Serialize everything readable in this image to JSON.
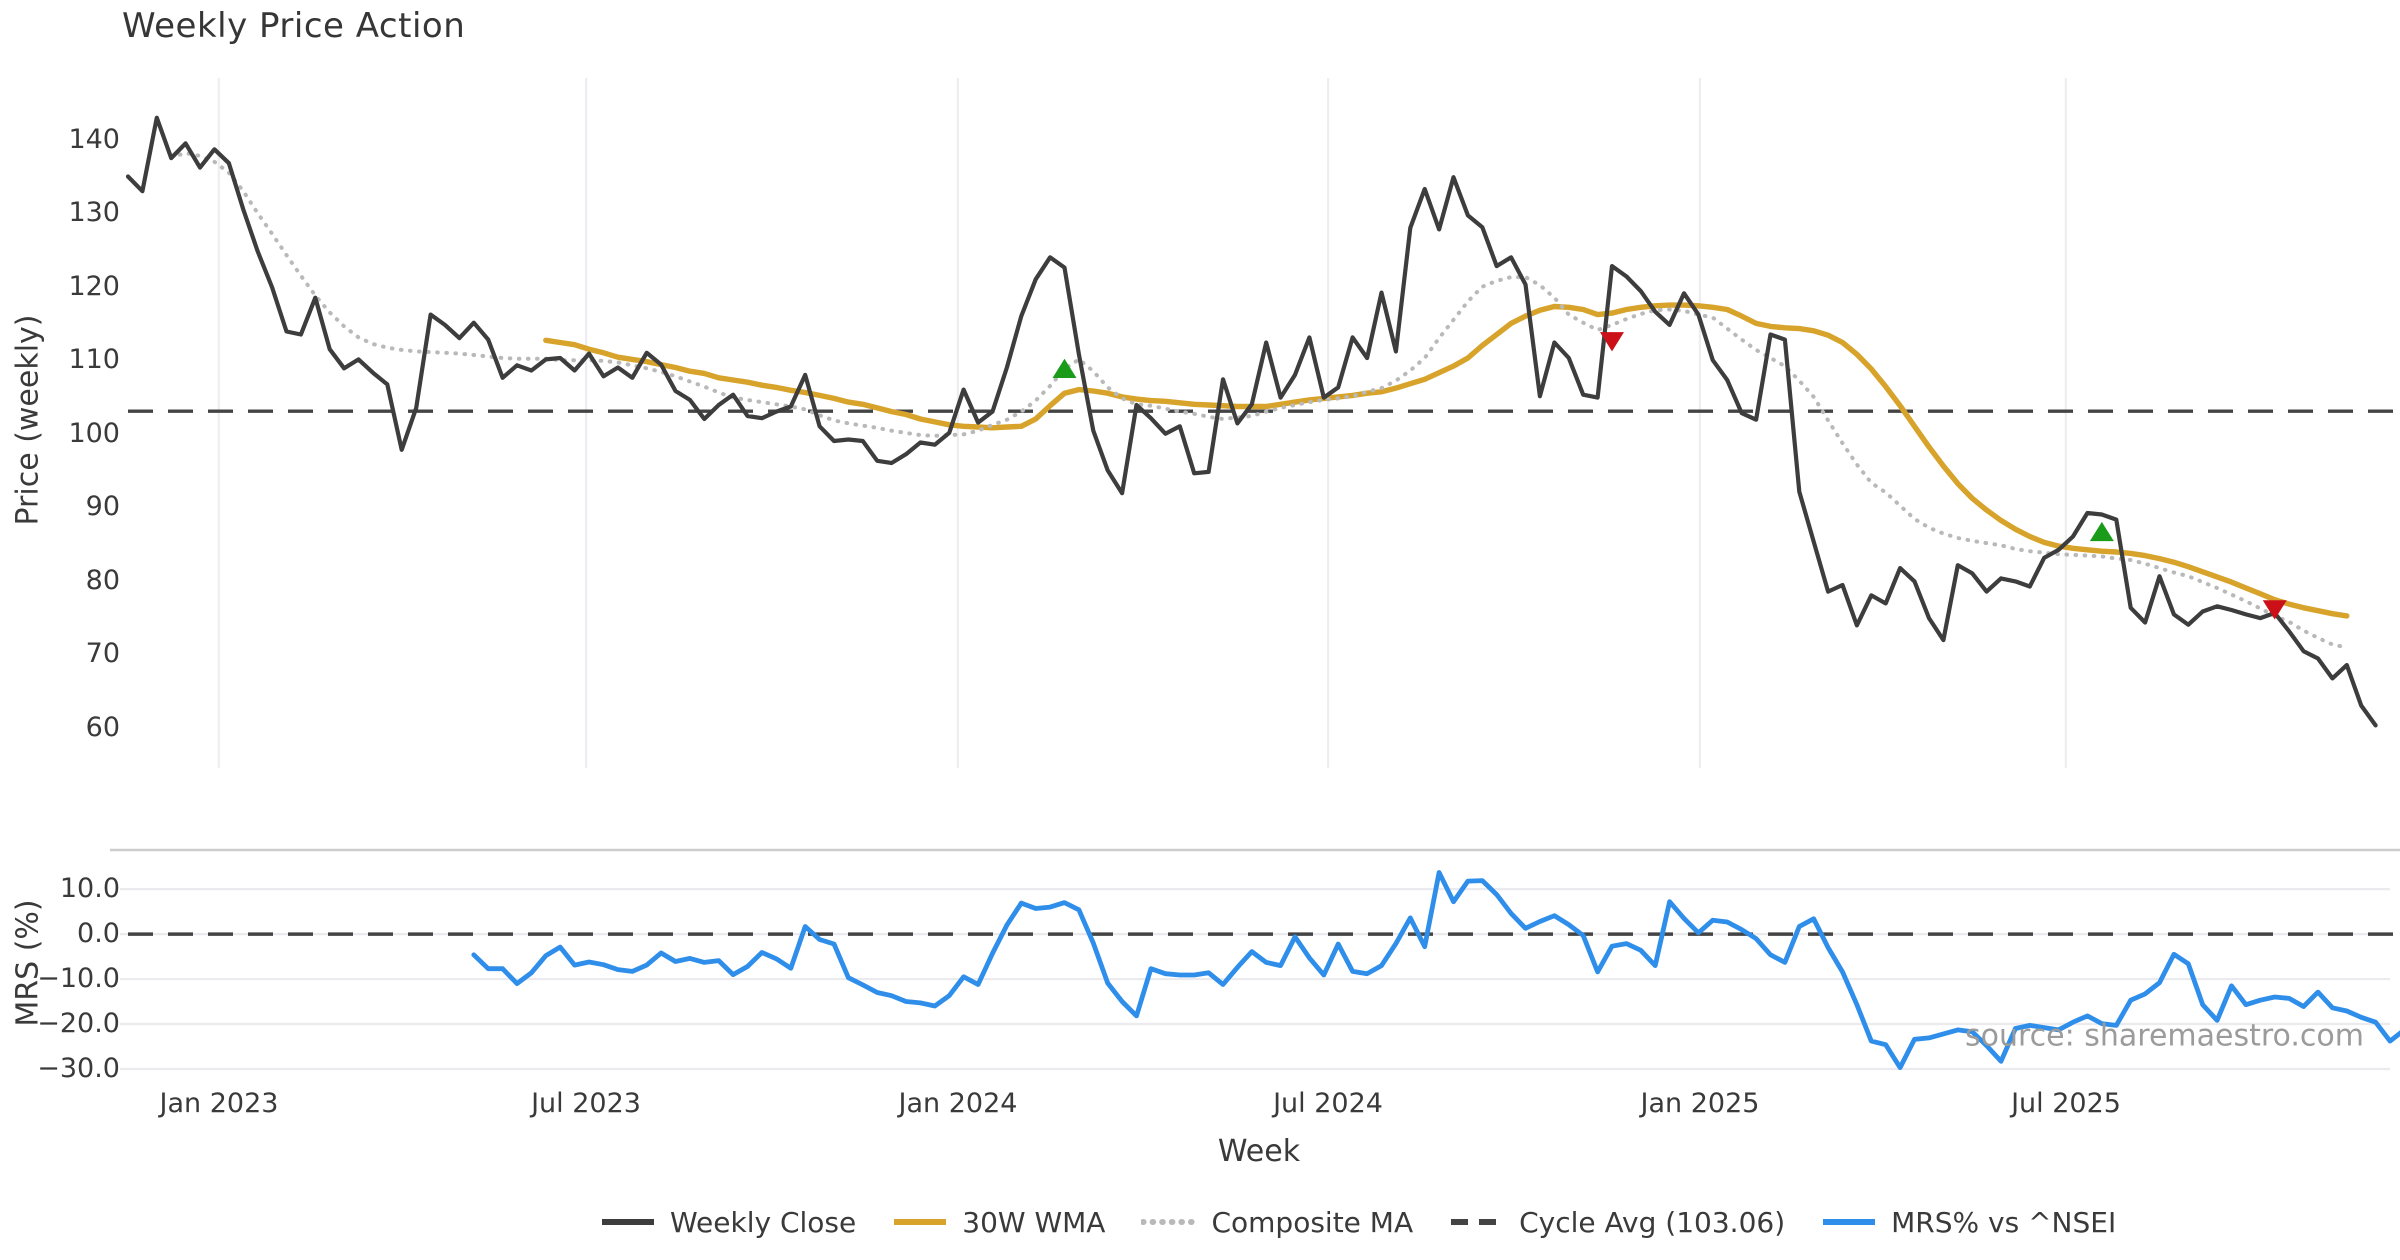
{
  "title": "Weekly Price Action",
  "source_note": "source: sharemaestro.com",
  "colors": {
    "weekly_close": "#3d3d3d",
    "wma_30w": "#d7a32a",
    "composite_ma": "#b9b9b9",
    "cycle_avg": "#444444",
    "mrs_line": "#2e8eea",
    "buy_marker": "#1a9c1a",
    "sell_marker": "#cb1117",
    "grid_vertical": "#ededf2",
    "grid_horizontal": "#ebebef",
    "panel_spine": "#cccccf",
    "text": "#3a3a3a",
    "muted_text": "#9b9b9b"
  },
  "legend": {
    "items": [
      {
        "label": "Weekly Close",
        "style": "solid",
        "color": "#3d3d3d"
      },
      {
        "label": "30W WMA",
        "style": "solid",
        "color": "#d7a32a"
      },
      {
        "label": "Composite MA",
        "style": "dotted",
        "color": "#b9b9b9"
      },
      {
        "label": "Cycle Avg (103.06)",
        "style": "dashed",
        "color": "#444444"
      },
      {
        "label": "MRS% vs ^NSEI",
        "style": "solid",
        "color": "#2e8eea"
      }
    ]
  },
  "chart_data": {
    "type": "line",
    "title": "Weekly Price Action",
    "xlabel": "Week",
    "x_axis": {
      "unit": "weeks",
      "n_weeks": 157,
      "tick_labels": [
        "Jan 2023",
        "Jul 2023",
        "Jan 2024",
        "Jul 2024",
        "Jan 2025",
        "Jul 2025"
      ],
      "tick_weeks": [
        6.3,
        31.8,
        57.6,
        83.3,
        109.1,
        134.5
      ]
    },
    "panels": [
      {
        "ylabel": "Price (weekly)",
        "ylim": [
          54.5,
          148.4
        ],
        "yticks": [
          60,
          70,
          80,
          90,
          100,
          110,
          120,
          130,
          140
        ],
        "ytick_labels": [
          "60",
          "70",
          "80",
          "90",
          "100",
          "110",
          "120",
          "130",
          "140"
        ],
        "grid": "vertical",
        "cycle_avg": 103.06,
        "series": [
          {
            "name": "Weekly Close",
            "style": "solid",
            "color": "#3d3d3d",
            "width": 4.2,
            "start_week": 0,
            "values": [
              135.0,
              133.0,
              143.0,
              137.5,
              139.5,
              136.2,
              138.7,
              136.8,
              130.5,
              124.8,
              119.9,
              113.9,
              113.5,
              118.5,
              111.5,
              108.9,
              110.1,
              108.3,
              106.7,
              97.8,
              103.5,
              116.2,
              114.8,
              113.0,
              115.1,
              112.8,
              107.6,
              109.3,
              108.6,
              110.1,
              110.3,
              108.6,
              110.9,
              107.8,
              109.0,
              107.6,
              111.0,
              109.4,
              105.8,
              104.6,
              102.0,
              103.9,
              105.3,
              102.4,
              102.1,
              103.0,
              103.7,
              108.0,
              101.0,
              99.0,
              99.2,
              99.0,
              96.3,
              96.0,
              97.2,
              98.8,
              98.5,
              100.1,
              106.0,
              101.5,
              103.0,
              109.0,
              116.0,
              121.0,
              124.0,
              122.6,
              110.8,
              100.4,
              95.0,
              91.9,
              103.9,
              102.1,
              100.0,
              101.0,
              94.6,
              94.8,
              107.4,
              101.4,
              104.0,
              112.4,
              104.9,
              108.0,
              113.1,
              104.9,
              106.3,
              113.1,
              110.3,
              119.2,
              111.2,
              128.0,
              133.3,
              127.8,
              134.9,
              129.7,
              128.1,
              122.8,
              124.0,
              120.3,
              105.1,
              112.4,
              110.3,
              105.3,
              104.9,
              122.8,
              121.4,
              119.4,
              116.6,
              114.8,
              119.1,
              116.2,
              110.0,
              107.3,
              102.8,
              101.9,
              113.5,
              112.8,
              92.1,
              85.3,
              78.5,
              79.4,
              73.9,
              78.0,
              76.9,
              81.7,
              79.9,
              74.9,
              71.9,
              82.1,
              81.0,
              78.5,
              80.3,
              79.9,
              79.2,
              83.1,
              84.2,
              86.0,
              89.2,
              89.0,
              88.3,
              76.3,
              74.3,
              80.6,
              75.4,
              74.0,
              75.8,
              76.5,
              76.0,
              75.4,
              74.9,
              75.6,
              73.1,
              70.4,
              69.4,
              66.7,
              68.5,
              63.0,
              60.3
            ]
          },
          {
            "name": "30W WMA",
            "style": "solid",
            "color": "#d7a32a",
            "width": 5.4,
            "start_week": 29,
            "values": [
              112.7,
              112.4,
              112.1,
              111.5,
              111.0,
              110.4,
              110.1,
              109.8,
              109.4,
              109.0,
              108.5,
              108.2,
              107.6,
              107.3,
              107.0,
              106.6,
              106.3,
              105.9,
              105.6,
              105.2,
              104.8,
              104.3,
              104.0,
              103.5,
              103.0,
              102.6,
              102.0,
              101.6,
              101.2,
              101.0,
              100.9,
              100.8,
              100.9,
              101.0,
              102.0,
              103.8,
              105.5,
              106.0,
              105.8,
              105.5,
              105.0,
              104.7,
              104.5,
              104.4,
              104.2,
              104.0,
              103.9,
              103.8,
              103.7,
              103.7,
              103.7,
              104.0,
              104.3,
              104.6,
              104.8,
              105.0,
              105.2,
              105.5,
              105.7,
              106.2,
              106.8,
              107.4,
              108.3,
              109.2,
              110.3,
              112.0,
              113.5,
              115.0,
              116.0,
              116.8,
              117.3,
              117.2,
              116.9,
              116.2,
              116.4,
              116.9,
              117.2,
              117.4,
              117.5,
              117.5,
              117.4,
              117.2,
              116.9,
              116.0,
              115.0,
              114.6,
              114.4,
              114.3,
              114.0,
              113.4,
              112.4,
              110.8,
              108.8,
              106.4,
              103.8,
              101.0,
              98.2,
              95.6,
              93.2,
              91.2,
              89.6,
              88.2,
              87.0,
              86.0,
              85.2,
              84.7,
              84.4,
              84.2,
              84.0,
              83.9,
              83.7,
              83.4,
              83.0,
              82.5,
              81.9,
              81.2,
              80.5,
              79.8,
              79.0,
              78.2,
              77.4,
              76.8,
              76.3,
              75.9,
              75.5,
              75.2
            ]
          },
          {
            "name": "Composite MA",
            "style": "dotted",
            "color": "#b9b9b9",
            "width": 4.0,
            "start_week": 3,
            "values": [
              137.6,
              138.2,
              137.8,
              137.0,
              135.5,
              133.0,
              130.0,
              127.2,
              124.3,
              121.5,
              118.8,
              116.5,
              114.6,
              113.1,
              112.2,
              111.7,
              111.4,
              111.2,
              111.1,
              111.0,
              110.9,
              110.7,
              110.5,
              110.3,
              110.2,
              110.2,
              110.2,
              110.0,
              110.0,
              110.0,
              109.9,
              109.7,
              109.3,
              108.9,
              108.4,
              107.8,
              107.1,
              106.4,
              105.6,
              104.9,
              104.6,
              104.3,
              104.0,
              103.7,
              103.3,
              102.5,
              101.8,
              101.4,
              101.1,
              100.8,
              100.4,
              100.1,
              99.8,
              99.7,
              99.8,
              99.9,
              100.4,
              101.2,
              101.9,
              103.0,
              104.5,
              106.5,
              108.8,
              110.1,
              108.5,
              106.3,
              104.8,
              104.0,
              103.8,
              103.4,
              103.0,
              102.7,
              102.3,
              102.0,
              102.2,
              102.4,
              103.0,
              103.5,
              103.9,
              104.3,
              104.6,
              104.8,
              105.1,
              105.7,
              106.2,
              107.2,
              108.6,
              110.3,
              113.0,
              115.5,
              118.0,
              120.0,
              120.8,
              121.3,
              121.3,
              120.2,
              118.5,
              116.2,
              115.1,
              114.1,
              114.8,
              115.6,
              116.3,
              116.8,
              116.9,
              116.7,
              116.2,
              115.8,
              114.3,
              112.8,
              111.4,
              110.3,
              109.2,
              107.2,
              105.0,
              101.8,
              98.7,
              95.8,
              93.3,
              92.0,
              90.2,
              88.4,
              87.2,
              86.4,
              85.8,
              85.4,
              85.1,
              84.8,
              84.3,
              84.0,
              83.8,
              83.6,
              83.5,
              83.4,
              83.3,
              83.0,
              82.8,
              82.3,
              81.7,
              81.1,
              80.6,
              79.8,
              79.0,
              78.1,
              77.2,
              76.2,
              75.2,
              74.4,
              73.2,
              72.2,
              71.3,
              70.9
            ]
          }
        ],
        "markers": [
          {
            "shape": "triangle-up",
            "color": "#1a9c1a",
            "week": 65,
            "value": 108.7
          },
          {
            "shape": "triangle-up",
            "color": "#1a9c1a",
            "week": 137,
            "value": 86.5
          },
          {
            "shape": "triangle-down",
            "color": "#cb1117",
            "week": 103,
            "value": 112.7
          },
          {
            "shape": "triangle-down",
            "color": "#cb1117",
            "week": 149,
            "value": 76.2
          }
        ]
      },
      {
        "ylabel": "MRS (%)",
        "ylim": [
          -32.9,
          17.6
        ],
        "yticks": [
          10,
          0,
          -10,
          -20,
          -30
        ],
        "ytick_labels": [
          "10.0",
          "0.0",
          "−10.0",
          "−20.0",
          "−30.0"
        ],
        "grid": "horizontal",
        "zero_line": 0,
        "series": [
          {
            "name": "MRS% vs ^NSEI",
            "style": "solid",
            "color": "#2e8eea",
            "width": 4.8,
            "start_week": 24,
            "values": [
              -4.6,
              -7.7,
              -7.7,
              -11.0,
              -8.6,
              -4.8,
              -2.9,
              -6.9,
              -6.2,
              -6.8,
              -7.9,
              -8.3,
              -6.9,
              -4.2,
              -6.1,
              -5.4,
              -6.3,
              -5.9,
              -9.0,
              -7.2,
              -4.1,
              -5.5,
              -7.6,
              1.7,
              -1.2,
              -2.2,
              -9.7,
              -11.3,
              -13.0,
              -13.7,
              -15.0,
              -15.3,
              -16.0,
              -13.7,
              -9.5,
              -11.2,
              -4.3,
              2.0,
              6.9,
              5.7,
              6.0,
              7.0,
              5.4,
              -2.0,
              -10.9,
              -15.0,
              -18.2,
              -7.7,
              -8.8,
              -9.1,
              -9.1,
              -8.6,
              -11.2,
              -7.4,
              -3.9,
              -6.3,
              -7.0,
              -0.6,
              -5.3,
              -9.1,
              -2.2,
              -8.3,
              -8.8,
              -7.0,
              -2.1,
              3.6,
              -2.8,
              13.7,
              7.2,
              11.8,
              11.9,
              8.8,
              4.6,
              1.3,
              2.8,
              4.1,
              2.1,
              -0.3,
              -8.4,
              -2.7,
              -2.1,
              -3.6,
              -7.0,
              7.2,
              3.5,
              0.3,
              3.1,
              2.7,
              1.0,
              -1.0,
              -4.6,
              -6.3,
              1.7,
              3.4,
              -3.0,
              -8.4,
              -15.7,
              -23.8,
              -24.6,
              -29.7,
              -23.4,
              -23.1,
              -22.2,
              -21.3,
              -21.7,
              -24.8,
              -28.3,
              -21.0,
              -20.3,
              -20.8,
              -21.3,
              -19.6,
              -18.2,
              -19.9,
              -20.3,
              -14.7,
              -13.3,
              -10.8,
              -4.5,
              -6.6,
              -15.7,
              -19.2,
              -11.5,
              -15.7,
              -14.7,
              -14.0,
              -14.3,
              -16.1,
              -12.9,
              -16.4,
              -17.1,
              -18.5,
              -19.6,
              -23.8,
              -21.3,
              -26.7
            ]
          }
        ]
      }
    ]
  }
}
